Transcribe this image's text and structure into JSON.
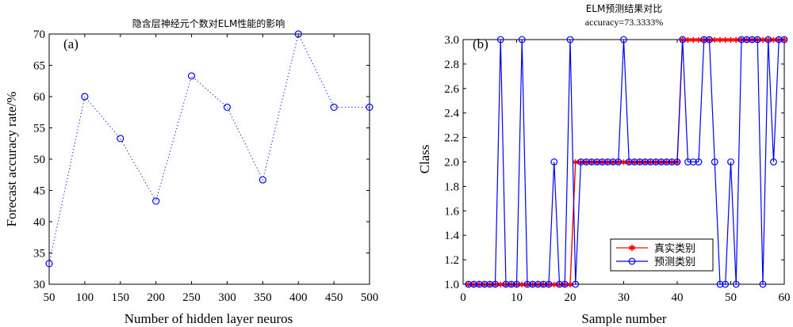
{
  "chart_data": [
    {
      "type": "line",
      "panel_label": "(a)",
      "title": "隐含层神经元个数对ELM性能的影响",
      "subtitle": "",
      "xlabel": "Number of hidden layer neuros",
      "ylabel": "Forecast accuracy rate/%",
      "xlim": [
        50,
        500
      ],
      "ylim": [
        30,
        70
      ],
      "xticks": [
        50,
        100,
        150,
        200,
        250,
        300,
        350,
        400,
        450,
        500
      ],
      "yticks": [
        30,
        35,
        40,
        45,
        50,
        55,
        60,
        65,
        70
      ],
      "grid": false,
      "line_style": "dotted",
      "marker": "circle",
      "color": "#0000ff",
      "x": [
        50,
        100,
        150,
        200,
        250,
        300,
        350,
        400,
        450,
        500
      ],
      "y": [
        33.3,
        60.0,
        53.3,
        43.3,
        63.3,
        58.3,
        46.7,
        70.0,
        58.3,
        58.3
      ]
    },
    {
      "type": "line",
      "panel_label": "(b)",
      "title": "ELM预测结果对比",
      "subtitle": "accuracy=73.3333%",
      "xlabel": "Sample number",
      "ylabel": "Class",
      "xlim": [
        0,
        60
      ],
      "ylim": [
        1.0,
        3.0
      ],
      "xticks": [
        0,
        10,
        20,
        30,
        40,
        50,
        60
      ],
      "yticks": [
        1.0,
        1.2,
        1.4,
        1.6,
        1.8,
        2.0,
        2.2,
        2.4,
        2.6,
        2.8,
        3.0
      ],
      "grid": false,
      "legend_position": "bottom-right",
      "x": [
        1,
        2,
        3,
        4,
        5,
        6,
        7,
        8,
        9,
        10,
        11,
        12,
        13,
        14,
        15,
        16,
        17,
        18,
        19,
        20,
        21,
        22,
        23,
        24,
        25,
        26,
        27,
        28,
        29,
        30,
        31,
        32,
        33,
        34,
        35,
        36,
        37,
        38,
        39,
        40,
        41,
        42,
        43,
        44,
        45,
        46,
        47,
        48,
        49,
        50,
        51,
        52,
        53,
        54,
        55,
        56,
        57,
        58,
        59,
        60
      ],
      "series": [
        {
          "name": "真实类别",
          "color": "#ff0000",
          "marker": "star",
          "values": [
            1,
            1,
            1,
            1,
            1,
            1,
            1,
            1,
            1,
            1,
            1,
            1,
            1,
            1,
            1,
            1,
            1,
            1,
            1,
            1,
            2,
            2,
            2,
            2,
            2,
            2,
            2,
            2,
            2,
            2,
            2,
            2,
            2,
            2,
            2,
            2,
            2,
            2,
            2,
            2,
            3,
            3,
            3,
            3,
            3,
            3,
            3,
            3,
            3,
            3,
            3,
            3,
            3,
            3,
            3,
            3,
            3,
            3,
            3,
            3
          ]
        },
        {
          "name": "预测类别",
          "color": "#0000ff",
          "marker": "circle",
          "values": [
            1,
            1,
            1,
            1,
            1,
            1,
            3,
            1,
            1,
            1,
            3,
            1,
            1,
            1,
            1,
            1,
            2,
            1,
            1,
            3,
            1,
            2,
            2,
            2,
            2,
            2,
            2,
            2,
            2,
            3,
            2,
            2,
            2,
            2,
            2,
            2,
            2,
            2,
            2,
            2,
            3,
            2,
            2,
            2,
            3,
            3,
            2,
            1,
            1,
            2,
            1,
            3,
            3,
            3,
            3,
            1,
            3,
            2,
            3,
            3
          ]
        }
      ]
    }
  ]
}
